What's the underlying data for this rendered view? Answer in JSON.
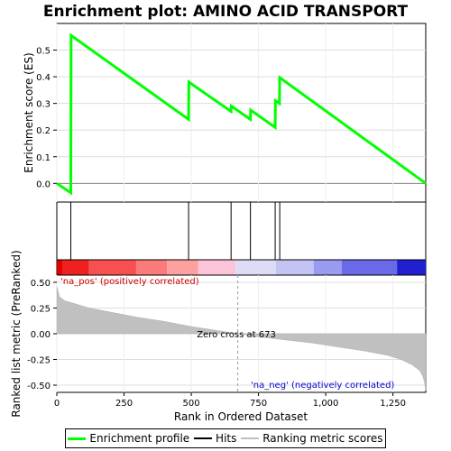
{
  "chart_data": {
    "type": "line",
    "title": "Enrichment plot: AMINO ACID TRANSPORT",
    "top_panel": {
      "ylabel": "Enrichment score (ES)",
      "ylim": [
        -0.07,
        0.6
      ],
      "yticks": [
        0.0,
        0.1,
        0.2,
        0.3,
        0.4,
        0.5
      ],
      "ytick_labels": [
        "0.0",
        "0.1",
        "0.2",
        "0.3",
        "0.4",
        "0.5"
      ],
      "series": [
        {
          "name": "Enrichment profile",
          "color": "#00ff00",
          "points": [
            [
              0,
              0.0
            ],
            [
              52,
              -0.035
            ],
            [
              53,
              0.555
            ],
            [
              490,
              0.24
            ],
            [
              491,
              0.38
            ],
            [
              648,
              0.27
            ],
            [
              649,
              0.29
            ],
            [
              720,
              0.24
            ],
            [
              721,
              0.275
            ],
            [
              812,
              0.21
            ],
            [
              813,
              0.31
            ],
            [
              828,
              0.3
            ],
            [
              829,
              0.397
            ],
            [
              1372,
              0.0
            ]
          ]
        }
      ]
    },
    "hits_panel": {
      "name": "Hits",
      "hit_ranks": [
        52,
        490,
        648,
        720,
        812,
        829
      ]
    },
    "ranking_panel": {
      "ylabel": "Ranked list metric (PreRanked)",
      "xlabel": "Rank in Ordered Dataset",
      "ylim": [
        -0.57,
        0.57
      ],
      "yticks": [
        -0.5,
        -0.25,
        0.0,
        0.25,
        0.5
      ],
      "ytick_labels": [
        "-0.50",
        "-0.25",
        "0.00",
        "0.25",
        "0.50"
      ],
      "series_name": "Ranking metric scores",
      "curve": [
        [
          0,
          0.46
        ],
        [
          10,
          0.36
        ],
        [
          30,
          0.32
        ],
        [
          70,
          0.29
        ],
        [
          120,
          0.25
        ],
        [
          200,
          0.21
        ],
        [
          300,
          0.16
        ],
        [
          400,
          0.12
        ],
        [
          500,
          0.07
        ],
        [
          600,
          0.03
        ],
        [
          673,
          0.0
        ],
        [
          750,
          -0.03
        ],
        [
          850,
          -0.06
        ],
        [
          950,
          -0.09
        ],
        [
          1050,
          -0.13
        ],
        [
          1150,
          -0.17
        ],
        [
          1230,
          -0.21
        ],
        [
          1280,
          -0.25
        ],
        [
          1320,
          -0.3
        ],
        [
          1350,
          -0.36
        ],
        [
          1362,
          -0.42
        ],
        [
          1368,
          -0.48
        ],
        [
          1372,
          -0.55
        ]
      ],
      "zero_cross_rank": 673,
      "zero_cross_label": "Zero cross at 673",
      "pos_label": "'na_pos' (positively correlated)",
      "neg_label": "'na_neg' (negatively correlated)",
      "pos_label_color": "#cc0000",
      "neg_label_color": "#0000cc"
    },
    "color_bar": {
      "segments": [
        {
          "from": 0,
          "to": 20,
          "color": "#e00000"
        },
        {
          "from": 20,
          "to": 120,
          "color": "#ee2020"
        },
        {
          "from": 120,
          "to": 295,
          "color": "#f85050"
        },
        {
          "from": 295,
          "to": 410,
          "color": "#fb7a7a"
        },
        {
          "from": 410,
          "to": 525,
          "color": "#fca0a0"
        },
        {
          "from": 525,
          "to": 665,
          "color": "#fcc4d8"
        },
        {
          "from": 665,
          "to": 815,
          "color": "#dcdcf8"
        },
        {
          "from": 815,
          "to": 955,
          "color": "#c4c4f4"
        },
        {
          "from": 955,
          "to": 1060,
          "color": "#9a9af0"
        },
        {
          "from": 1060,
          "to": 1265,
          "color": "#6a6ae8"
        },
        {
          "from": 1265,
          "to": 1372,
          "color": "#2020d0"
        }
      ]
    },
    "xlim": [
      0,
      1372
    ],
    "xticks": [
      0,
      250,
      500,
      750,
      1000,
      1250
    ],
    "xtick_labels": [
      "0",
      "250",
      "500",
      "750",
      "1,000",
      "1,250"
    ],
    "legend": {
      "entries": [
        {
          "label": "Enrichment profile",
          "color": "#00ff00"
        },
        {
          "label": "Hits",
          "color": "#000000"
        },
        {
          "label": "Ranking metric scores",
          "color": "#c0c0c0"
        }
      ]
    }
  }
}
